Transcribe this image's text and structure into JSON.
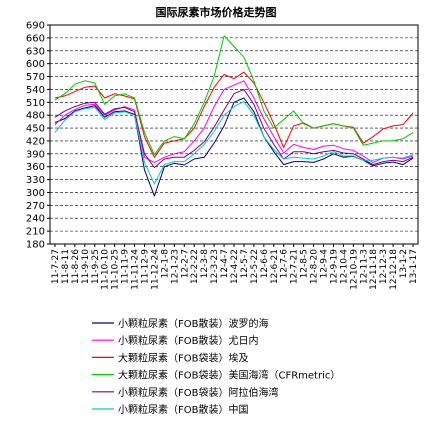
{
  "chart_data": {
    "type": "line",
    "title": "国际尿素市场价格走势图",
    "xlabel": "",
    "ylabel": "",
    "ylim": [
      180,
      690
    ],
    "yticks": [
      180,
      210,
      240,
      270,
      300,
      330,
      360,
      390,
      420,
      450,
      480,
      510,
      540,
      570,
      600,
      630,
      660,
      690
    ],
    "grid": true,
    "legend_position": "bottom",
    "x_labels": [
      "11-7-27",
      "11-8-11",
      "11-8-26",
      "11-9-10",
      "11-9-25",
      "11-10-10",
      "11-10-25",
      "11-11-9",
      "11-11-24",
      "11-12-9",
      "11-12-24",
      "12-1-8",
      "12-1-23",
      "12-2-7",
      "12-2-22",
      "12-3-8",
      "12-3-23",
      "12-4-7",
      "12-4-22",
      "12-5-7",
      "12-5-22",
      "12-6-6",
      "12-6-21",
      "12-7-6",
      "12-7-21",
      "12-8-5",
      "12-8-20",
      "12-9-4",
      "12-9-19",
      "12-10-4",
      "12-10-19",
      "12-11-3",
      "12-11-18",
      "12-12-3",
      "12-12-18",
      "13-1-2",
      "13-1-17"
    ],
    "series": [
      {
        "name": "小颗粒尿素（FOB散装）波罗的海",
        "color": "#000080",
        "values": [
          463,
          472,
          490,
          497,
          502,
          475,
          488,
          490,
          482,
          352,
          292,
          360,
          368,
          364,
          378,
          382,
          415,
          455,
          510,
          520,
          488,
          430,
          395,
          365,
          372,
          372,
          370,
          378,
          390,
          382,
          384,
          375,
          362,
          368,
          371,
          365,
          380
        ]
      },
      {
        "name": "小颗粒尿素（FOB散装）尤日内",
        "color": "#ff00ff",
        "values": [
          458,
          480,
          493,
          503,
          505,
          480,
          492,
          500,
          492,
          382,
          370,
          382,
          390,
          395,
          420,
          450,
          500,
          540,
          550,
          560,
          520,
          472,
          430,
          392,
          412,
          405,
          400,
          408,
          410,
          402,
          398,
          385,
          370,
          380,
          382,
          378,
          385
        ]
      },
      {
        "name": "大颗粒尿素（FOB袋装）埃及",
        "color": "#ff0000",
        "values": [
          520,
          525,
          535,
          545,
          548,
          520,
          530,
          525,
          518,
          430,
          382,
          415,
          420,
          425,
          450,
          500,
          545,
          575,
          565,
          580,
          555,
          510,
          460,
          405,
          455,
          462,
          450,
          455,
          460,
          455,
          452,
          415,
          430,
          448,
          455,
          458,
          485
        ]
      },
      {
        "name": "大颗粒尿素（FOB袋装）美国海湾（CFRmetric）",
        "color": "#00cc00",
        "values": [
          515,
          530,
          552,
          560,
          555,
          505,
          525,
          530,
          520,
          440,
          388,
          420,
          430,
          425,
          460,
          510,
          570,
          665,
          640,
          615,
          560,
          490,
          450,
          470,
          490,
          460,
          450,
          455,
          460,
          455,
          450,
          410,
          415,
          420,
          420,
          425,
          440
        ]
      },
      {
        "name": "小颗粒尿素（FOB袋装）阿拉伯海湾",
        "color": "#800080",
        "values": [
          475,
          490,
          500,
          508,
          510,
          482,
          495,
          498,
          488,
          390,
          358,
          378,
          382,
          382,
          398,
          418,
          452,
          492,
          530,
          540,
          505,
          450,
          412,
          378,
          395,
          395,
          390,
          395,
          398,
          392,
          390,
          378,
          365,
          372,
          375,
          372,
          382
        ]
      },
      {
        "name": "小颗粒尿素（FOB散装）中国",
        "color": "#00cccc",
        "values": [
          440,
          468,
          488,
          495,
          498,
          470,
          485,
          488,
          480,
          370,
          320,
          365,
          372,
          372,
          390,
          412,
          442,
          480,
          500,
          512,
          480,
          430,
          400,
          378,
          382,
          380,
          378,
          385,
          395,
          385,
          385,
          375,
          375,
          380,
          382,
          380,
          388
        ]
      }
    ]
  }
}
